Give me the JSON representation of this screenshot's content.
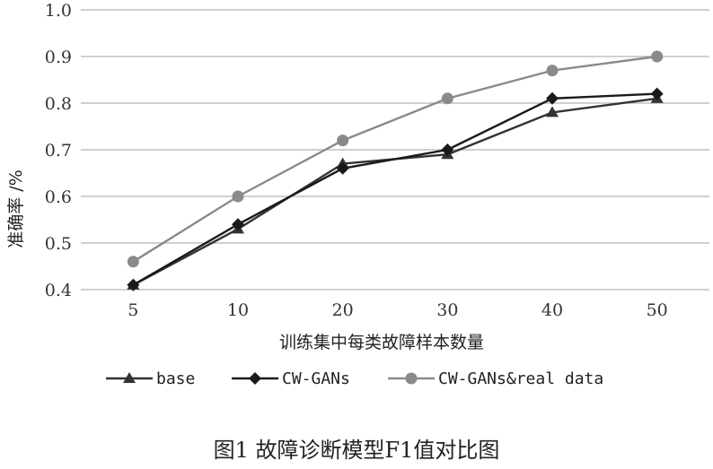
{
  "caption": "图1 故障诊断模型F1值对比图",
  "chart_data": {
    "type": "line",
    "title": "",
    "xlabel": "训练集中每类故障样本数量",
    "ylabel": "准确率 /%",
    "categories": [
      "5",
      "10",
      "20",
      "30",
      "40",
      "50"
    ],
    "ylim": [
      0.4,
      1.0
    ],
    "yticks": [
      "0.4",
      "0.5",
      "0.6",
      "0.7",
      "0.8",
      "0.9",
      "1.0"
    ],
    "grid": true,
    "legend_position": "bottom",
    "series": [
      {
        "name": "base",
        "values": [
          0.41,
          0.53,
          0.67,
          0.69,
          0.78,
          0.81
        ],
        "marker": "triangle",
        "color": "#333333"
      },
      {
        "name": "CW-GANs",
        "values": [
          0.41,
          0.54,
          0.66,
          0.7,
          0.81,
          0.82
        ],
        "marker": "diamond",
        "color": "#1a1a1a"
      },
      {
        "name": "CW-GANs&real data",
        "values": [
          0.46,
          0.6,
          0.72,
          0.81,
          0.87,
          0.9
        ],
        "marker": "circle",
        "color": "#8a8a8a"
      }
    ]
  }
}
